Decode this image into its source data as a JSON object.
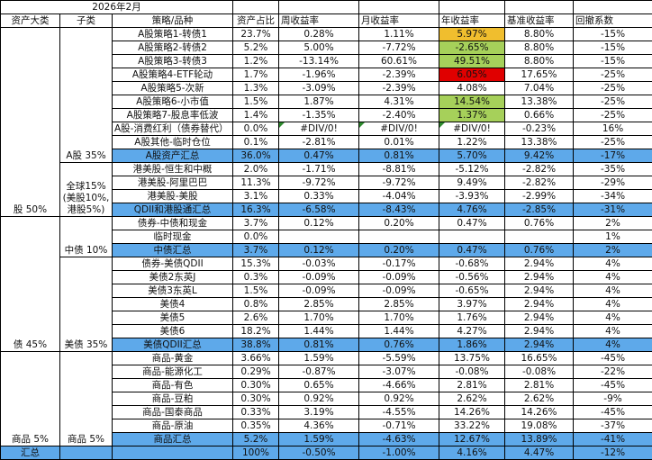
{
  "sheet": {
    "title": "2026年2月",
    "headers": [
      "资产大类",
      "子类",
      "策略/品种",
      "资产占比",
      "周收益率",
      "月收益率",
      "年收益率",
      "基准收益率",
      "回撤系数"
    ],
    "colors": {
      "summary_fill": "#5ea9ea",
      "year_yellow": "#f0be2e",
      "year_green": "#a6d05a",
      "year_red": "#e00000",
      "error_marker": "#2e8b2e"
    },
    "categories": [
      {
        "label": "股 50%",
        "subs": [
          {
            "label": "A股 35%",
            "rows": [
              {
                "name": "A股策略1-转债1",
                "share": "23.7%",
                "week": "0.28%",
                "month": "1.11%",
                "year": "5.97%",
                "bench": "8.80%",
                "dd": "-15%",
                "year_color": "yellow"
              },
              {
                "name": "A股策略2-转债2",
                "share": "5.2%",
                "week": "5.00%",
                "month": "-7.72%",
                "year": "-2.65%",
                "bench": "8.80%",
                "dd": "-15%",
                "year_color": "green"
              },
              {
                "name": "A股策略3-转债3",
                "share": "1.2%",
                "week": "-13.14%",
                "month": "60.61%",
                "year": "49.51%",
                "bench": "8.80%",
                "dd": "-15%",
                "year_color": "green"
              },
              {
                "name": "A股策略4-ETF轮动",
                "share": "1.7%",
                "week": "-1.96%",
                "month": "-2.39%",
                "year": "6.05%",
                "bench": "17.65%",
                "dd": "-25%",
                "year_color": "red"
              },
              {
                "name": "A股策略5-次新",
                "share": "1.3%",
                "week": "-3.09%",
                "month": "-2.39%",
                "year": "4.08%",
                "bench": "7.04%",
                "dd": "-25%"
              },
              {
                "name": "A股策略6-小市值",
                "share": "1.5%",
                "week": "1.87%",
                "month": "4.31%",
                "year": "14.54%",
                "bench": "13.38%",
                "dd": "-25%",
                "year_color": "green"
              },
              {
                "name": "A股策略7-股息率低波",
                "share": "1.4%",
                "week": "-1.35%",
                "month": "-2.40%",
                "year": "1.37%",
                "bench": "0.66%",
                "dd": "-25%",
                "year_color": "green"
              },
              {
                "name": "A股-消费红利（债券替代）",
                "share": "0.0%",
                "week": "#DIV/0!",
                "month": "#DIV/0!",
                "year": "#DIV/0!",
                "bench": "-0.23%",
                "dd": "16%",
                "error": true,
                "left": true
              },
              {
                "name": "A股其他-临时仓位",
                "share": "0.1%",
                "week": "-2.81%",
                "month": "0.01%",
                "year": "1.22%",
                "bench": "13.38%",
                "dd": "-25%"
              },
              {
                "name": "A股资产汇总",
                "share": "36.0%",
                "week": "0.47%",
                "month": "0.81%",
                "year": "5.70%",
                "bench": "9.42%",
                "dd": "-17%",
                "summary": true
              }
            ]
          },
          {
            "label": "全球15%\n(美股10%,\n港股5%)",
            "rows": [
              {
                "name": "港美股-恒生和中概",
                "share": "2.0%",
                "week": "-1.71%",
                "month": "-8.81%",
                "year": "-5.12%",
                "bench": "-2.82%",
                "dd": "-35%"
              },
              {
                "name": "港美股-阿里巴巴",
                "share": "11.3%",
                "week": "-9.72%",
                "month": "-9.72%",
                "year": "9.49%",
                "bench": "-2.82%",
                "dd": "-29%"
              },
              {
                "name": "港美股-美股",
                "share": "3.1%",
                "week": "0.33%",
                "month": "-4.04%",
                "year": "-3.93%",
                "bench": "-2.99%",
                "dd": "-34%"
              },
              {
                "name": "QDII和港股通汇总",
                "share": "16.3%",
                "week": "-6.58%",
                "month": "-8.43%",
                "year": "4.76%",
                "bench": "-2.85%",
                "dd": "-31%",
                "summary": true
              }
            ]
          }
        ]
      },
      {
        "label": "债 45%",
        "subs": [
          {
            "label": "中债 10%",
            "rows": [
              {
                "name": "债券-中债和现金",
                "share": "3.7%",
                "week": "0.12%",
                "month": "0.20%",
                "year": "0.47%",
                "bench": "0.76%",
                "dd": "2%"
              },
              {
                "name": "临时现金",
                "share": "0.0%",
                "week": "",
                "month": "",
                "year": "",
                "bench": "",
                "dd": "1%"
              },
              {
                "name": "中债汇总",
                "share": "3.7%",
                "week": "0.12%",
                "month": "0.20%",
                "year": "0.47%",
                "bench": "0.76%",
                "dd": "2%",
                "summary": true
              }
            ]
          },
          {
            "label": "美债 35%",
            "rows": [
              {
                "name": "债券-美债QDII",
                "share": "15.3%",
                "week": "-0.03%",
                "month": "-0.17%",
                "year": "-0.68%",
                "bench": "2.94%",
                "dd": "4%"
              },
              {
                "name": "美债2东英J",
                "share": "0.3%",
                "week": "-0.09%",
                "month": "-0.09%",
                "year": "-0.56%",
                "bench": "2.94%",
                "dd": "4%"
              },
              {
                "name": "美债3东英L",
                "share": "1.5%",
                "week": "-0.09%",
                "month": "-0.09%",
                "year": "-0.65%",
                "bench": "2.94%",
                "dd": "4%"
              },
              {
                "name": "美债4",
                "share": "0.8%",
                "week": "2.85%",
                "month": "2.85%",
                "year": "3.97%",
                "bench": "2.94%",
                "dd": "4%"
              },
              {
                "name": "美债5",
                "share": "2.6%",
                "week": "1.70%",
                "month": "1.70%",
                "year": "1.76%",
                "bench": "2.94%",
                "dd": "4%"
              },
              {
                "name": "美债6",
                "share": "18.2%",
                "week": "1.44%",
                "month": "1.44%",
                "year": "4.27%",
                "bench": "2.94%",
                "dd": "4%"
              },
              {
                "name": "美债QDII汇总",
                "share": "38.8%",
                "week": "0.81%",
                "month": "0.76%",
                "year": "1.86%",
                "bench": "2.94%",
                "dd": "4%",
                "summary": true
              }
            ]
          }
        ]
      },
      {
        "label": "商品 5%",
        "subs": [
          {
            "label": "商品 5%",
            "rows": [
              {
                "name": "商品-黄金",
                "share": "3.66%",
                "week": "1.59%",
                "month": "-5.59%",
                "year": "13.75%",
                "bench": "16.65%",
                "dd": "-45%"
              },
              {
                "name": "商品-能源化工",
                "share": "0.29%",
                "week": "-0.87%",
                "month": "-3.07%",
                "year": "-0.08%",
                "bench": "-0.08%",
                "dd": "-22%"
              },
              {
                "name": "商品-有色",
                "share": "0.30%",
                "week": "0.65%",
                "month": "-4.66%",
                "year": "2.81%",
                "bench": "2.81%",
                "dd": "-45%"
              },
              {
                "name": "商品-豆粕",
                "share": "0.30%",
                "week": "0.92%",
                "month": "0.92%",
                "year": "2.62%",
                "bench": "2.62%",
                "dd": "-9%"
              },
              {
                "name": "商品-国泰商品",
                "share": "0.33%",
                "week": "3.19%",
                "month": "-4.55%",
                "year": "14.26%",
                "bench": "14.26%",
                "dd": "-45%"
              },
              {
                "name": "商品-原油",
                "share": "0.35%",
                "week": "4.36%",
                "month": "-0.71%",
                "year": "33.22%",
                "bench": "19.08%",
                "dd": "-37%"
              },
              {
                "name": "商品汇总",
                "share": "5.2%",
                "week": "1.59%",
                "month": "-4.63%",
                "year": "12.67%",
                "bench": "13.89%",
                "dd": "-41%",
                "summary": true
              }
            ]
          }
        ]
      }
    ],
    "total": {
      "label": "汇总",
      "share": "100%",
      "week": "-0.50%",
      "month": "-1.00%",
      "year": "4.16%",
      "bench": "4.47%",
      "dd": "-12%"
    }
  }
}
